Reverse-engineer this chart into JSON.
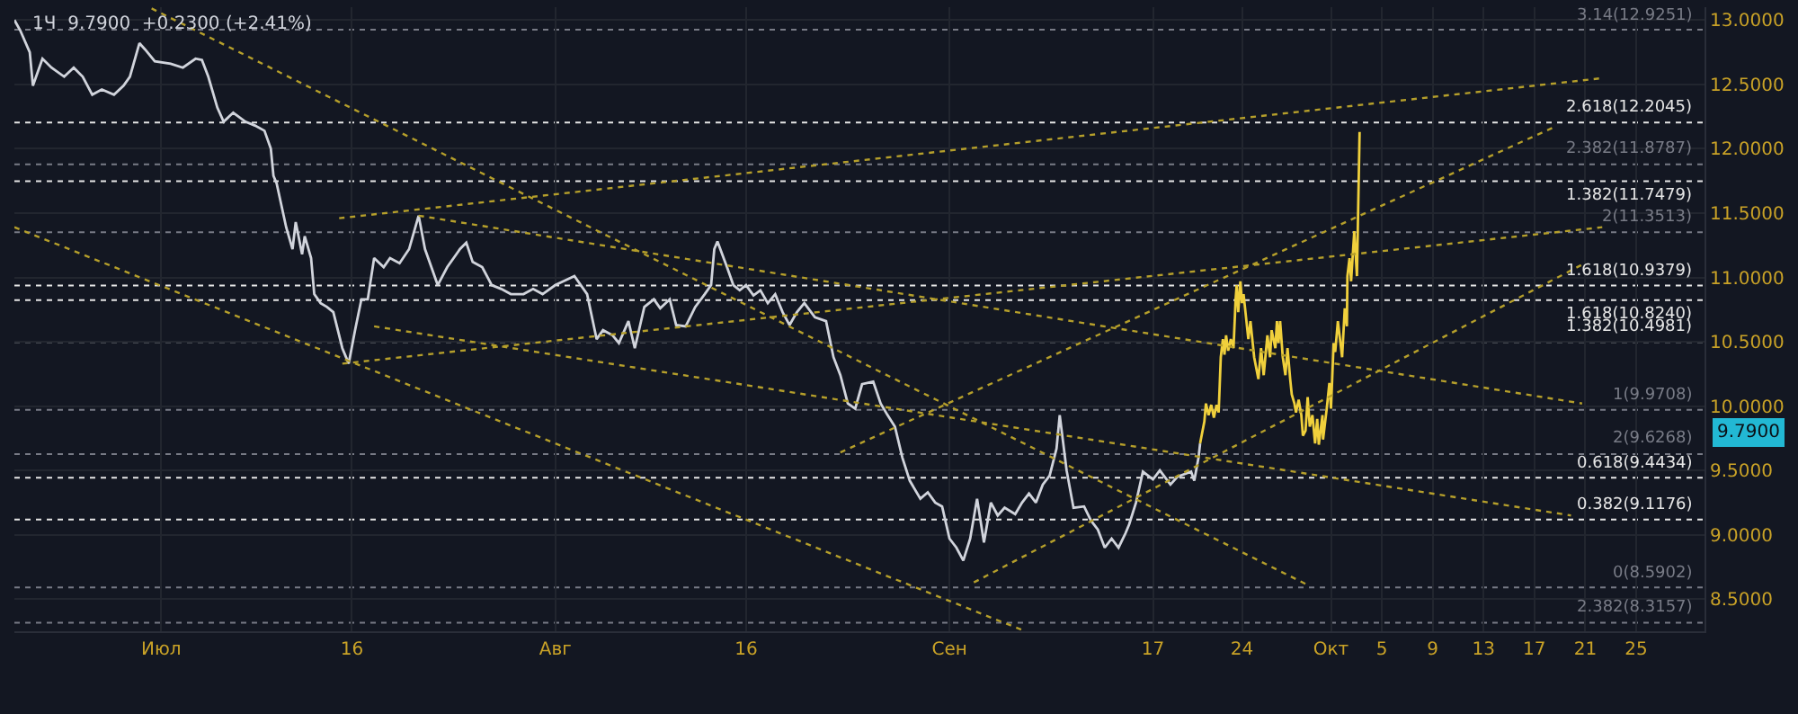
{
  "chart_data": {
    "type": "line",
    "title": "1Ч  9.7900  +0.2300 (+2.41%)",
    "xlim": [
      "--06-19T11:00",
      "--10-30T09:00"
    ],
    "ylim": [
      8.25,
      13.1
    ],
    "xticks": [
      {
        "value": "--07-01",
        "label": "Июл"
      },
      {
        "value": "--07-16",
        "label": "16"
      },
      {
        "value": "--08-01",
        "label": "Авг"
      },
      {
        "value": "--08-16",
        "label": "16"
      },
      {
        "value": "--09-01",
        "label": "Сен"
      },
      {
        "value": "--09-17",
        "label": "17"
      },
      {
        "value": "--09-24",
        "label": "24"
      },
      {
        "value": "--10-01",
        "label": "Окт"
      },
      {
        "value": "--10-05",
        "label": "5"
      },
      {
        "value": "--10-09",
        "label": "9"
      },
      {
        "value": "--10-13",
        "label": "13"
      },
      {
        "value": "--10-17",
        "label": "17"
      },
      {
        "value": "--10-21",
        "label": "21"
      },
      {
        "value": "--10-25",
        "label": "25"
      }
    ],
    "yticks": [
      {
        "value": 8.5,
        "label": "8.5000"
      },
      {
        "value": 9,
        "label": "9.0000"
      },
      {
        "value": 9.5,
        "label": "9.5000"
      },
      {
        "value": 10,
        "label": "10.0000"
      },
      {
        "value": 10.5,
        "label": "10.5000"
      },
      {
        "value": 11,
        "label": "11.0000"
      },
      {
        "value": 11.5,
        "label": "11.5000"
      },
      {
        "value": 12,
        "label": "12.0000"
      },
      {
        "value": 12.5,
        "label": "12.5000"
      },
      {
        "value": 13,
        "label": "13.0000"
      }
    ],
    "grid": true,
    "marker": "none",
    "series": [
      {
        "color": "#d1d4dc",
        "line_style": "solid",
        "x": [
          "--06-19T11:00",
          "--06-19T22:00",
          "--06-20T16:00",
          "--06-20T22:00",
          "--06-21T16:00",
          "--06-22T09:00",
          "--06-23T09:00",
          "--06-24T03:00",
          "--06-24T20:00",
          "--06-25T14:00",
          "--06-26T08:00",
          "--06-27T07:00",
          "--06-28T01:00",
          "--06-28T13:00",
          "--06-29T07:00",
          "--06-29T18:00",
          "--06-30T12:00",
          "--07-01T18:00",
          "--07-02T17:00",
          "--07-03T17:00",
          "--07-04T05:00",
          "--07-04T17:00",
          "--07-05T10:00",
          "--07-05T22:00",
          "--07-06T16:00",
          "--07-07T15:00",
          "--07-08T09:00",
          "--07-09T03:00",
          "--07-09T15:00",
          "--07-09T20:00",
          "--07-10T02:00",
          "--07-10T20:00",
          "--07-11T08:00",
          "--07-11T14:00",
          "--07-12T02:00",
          "--07-12T07:00",
          "--07-12T19:00",
          "--07-13T01:00",
          "--07-13T13:00",
          "--07-14T01:00",
          "--07-14T13:00",
          "--07-15T06:00",
          "--07-15T18:00",
          "--07-16T06:00",
          "--07-16T18:00",
          "--07-17T06:00",
          "--07-17T18:00",
          "--07-18T12:00",
          "--07-19T00:00",
          "--07-19T18:00",
          "--07-20T12:00",
          "--07-21T06:00",
          "--07-21T18:00",
          "--07-22T06:00",
          "--07-22T18:00",
          "--07-23T12:00",
          "--07-24T12:00",
          "--07-25T00:00",
          "--07-25T12:00",
          "--07-26T06:00",
          "--07-27T00:00",
          "--07-27T18:00",
          "--07-28T12:00",
          "--07-29T12:00",
          "--07-30T06:00",
          "--07-31T00:00",
          "--08-01T00:00",
          "--08-02T12:00",
          "--08-03T12:00",
          "--08-04T06:00",
          "--08-04T18:00",
          "--08-05T12:00",
          "--08-06T00:00",
          "--08-06T18:00",
          "--08-07T06:00",
          "--08-08T00:00",
          "--08-08T18:00",
          "--08-09T06:00",
          "--08-10T00:00",
          "--08-10T12:00",
          "--08-11T06:00",
          "--08-12T00:00",
          "--08-12T18:00",
          "--08-13T06:00",
          "--08-13T12:00",
          "--08-13T18:00",
          "--08-14T12:00",
          "--08-15T00:00",
          "--08-15T12:00",
          "--08-16T00:00",
          "--08-16T14:00",
          "--08-17T03:00",
          "--08-17T17:00",
          "--08-18T07:00",
          "--08-18T21:00",
          "--08-19T10:00",
          "--08-20T00:00",
          "--08-20T14:00",
          "--08-21T10:00",
          "--08-22T07:00",
          "--08-22T21:00",
          "--08-23T10:00",
          "--08-24T00:00",
          "--08-24T14:00",
          "--08-25T03:00",
          "--08-26T00:00",
          "--08-26T14:00",
          "--08-27T03:00",
          "--08-27T17:00",
          "--08-28T07:00",
          "--08-28T21:00",
          "--08-29T17:00",
          "--08-30T07:00",
          "--08-30T21:00",
          "--08-31T10:00",
          "--09-01T00:00",
          "--09-01T13:00",
          "--09-02T02:00",
          "--09-02T15:00",
          "--09-03T04:00",
          "--09-03T17:00",
          "--09-04T06:00",
          "--09-04T19:00",
          "--09-05T08:00",
          "--09-06T04:00",
          "--09-06T17:00",
          "--09-07T06:00",
          "--09-07T19:00",
          "--09-08T08:00",
          "--09-08T21:00",
          "--09-09T10:00",
          "--09-09T16:00",
          "--09-10T05:00",
          "--09-10T18:00",
          "--09-11T14:00",
          "--09-12T03:00",
          "--09-12T16:00",
          "--09-13T05:00",
          "--09-13T18:00",
          "--09-14T07:00",
          "--09-14T20:00",
          "--09-15T03:00",
          "--09-15T16:00",
          "--09-16T05:00",
          "--09-17T00:00",
          "--09-17T13:00",
          "--09-18T09:00",
          "--09-18T22:00",
          "--09-20T00:00",
          "--09-20T06:00",
          "--09-20T14:00",
          "--09-20T17:00"
        ],
        "values": [
          13.0,
          12.92,
          12.75,
          12.49,
          12.7,
          12.63,
          12.56,
          12.63,
          12.56,
          12.42,
          12.46,
          12.42,
          12.49,
          12.56,
          12.82,
          12.77,
          12.68,
          12.66,
          12.63,
          12.7,
          12.69,
          12.56,
          12.32,
          12.21,
          12.28,
          12.21,
          12.18,
          12.14,
          12.0,
          11.79,
          11.73,
          11.39,
          11.22,
          11.43,
          11.18,
          11.32,
          11.15,
          10.87,
          10.8,
          10.77,
          10.73,
          10.45,
          10.33,
          10.59,
          10.83,
          10.83,
          11.15,
          11.08,
          11.15,
          11.11,
          11.22,
          11.48,
          11.22,
          11.08,
          10.94,
          11.08,
          11.22,
          11.27,
          11.12,
          11.08,
          10.94,
          10.91,
          10.87,
          10.87,
          10.91,
          10.87,
          10.94,
          11.01,
          10.87,
          10.52,
          10.59,
          10.55,
          10.49,
          10.66,
          10.45,
          10.77,
          10.83,
          10.76,
          10.83,
          10.63,
          10.62,
          10.77,
          10.87,
          10.94,
          11.22,
          11.28,
          11.08,
          10.94,
          10.9,
          10.94,
          10.86,
          10.9,
          10.8,
          10.87,
          10.73,
          10.63,
          10.73,
          10.8,
          10.69,
          10.66,
          10.38,
          10.24,
          10.02,
          9.98,
          10.17,
          10.19,
          10.02,
          9.93,
          9.84,
          9.6,
          9.42,
          9.28,
          9.33,
          9.25,
          9.22,
          8.97,
          8.9,
          8.8,
          8.97,
          9.28,
          8.94,
          9.25,
          9.15,
          9.21,
          9.16,
          9.25,
          9.32,
          9.25,
          9.39,
          9.46,
          9.67,
          9.93,
          9.5,
          9.21,
          9.22,
          9.11,
          9.04,
          8.9,
          8.97,
          8.9,
          9.01,
          9.08,
          9.25,
          9.49,
          9.43,
          9.5,
          9.39,
          9.45,
          9.49,
          9.42,
          9.6,
          9.71
        ]
      },
      {
        "color": "#f0d03c",
        "line_style": "solid",
        "x": [
          "--09-20T17:00",
          "--09-21T01:00",
          "--09-21T04:00",
          "--09-21T09:00",
          "--09-21T14:00",
          "--09-21T19:00",
          "--09-22T00:00",
          "--09-22T04:00",
          "--09-22T08:00",
          "--09-22T12:00",
          "--09-22T15:00",
          "--09-22T18:00",
          "--09-22T22:00",
          "--09-23T03:00",
          "--09-23T08:00",
          "--09-23T12:00",
          "--09-23T14:00",
          "--09-23T17:00",
          "--09-23T21:00",
          "--09-24T00:00",
          "--09-24T03:00",
          "--09-24T12:00",
          "--09-24T16:00",
          "--09-24T23:00",
          "--09-25T07:00",
          "--09-25T12:00",
          "--09-25T17:00",
          "--09-26T00:00",
          "--09-26T05:00",
          "--09-26T08:00",
          "--09-26T15:00",
          "--09-26T18:00",
          "--09-26T21:00",
          "--09-27T00:00",
          "--09-27T05:00",
          "--09-27T10:00",
          "--09-27T14:00",
          "--09-27T19:00",
          "--09-27T22:00",
          "--09-28T03:00",
          "--09-28T06:00",
          "--09-28T11:00",
          "--09-28T16:00",
          "--09-28T19:00",
          "--09-29T00:00",
          "--09-29T04:00",
          "--09-29T08:00",
          "--09-29T13:00",
          "--09-29T18:00",
          "--09-29T22:00",
          "--09-30T01:00",
          "--09-30T08:00",
          "--09-30T09:00",
          "--09-30T16:00",
          "--09-30T21:00",
          "--10-01T00:00",
          "--10-01T05:00",
          "--10-01T08:00",
          "--10-01T13:00",
          "--10-01T21:00",
          "--10-02T02:00",
          "--10-02T06:00",
          "--10-02T07:00",
          "--10-02T11:00",
          "--10-02T14:00",
          "--10-02T20:00",
          "--10-03T01:00",
          "--10-03T06:00"
        ],
        "values": [
          9.71,
          9.88,
          10.02,
          9.93,
          10.01,
          9.91,
          10.01,
          9.95,
          10.38,
          10.52,
          10.4,
          10.55,
          10.43,
          10.52,
          10.45,
          10.83,
          10.94,
          10.73,
          10.97,
          10.8,
          10.87,
          10.52,
          10.66,
          10.38,
          10.21,
          10.45,
          10.24,
          10.55,
          10.38,
          10.59,
          10.45,
          10.66,
          10.49,
          10.66,
          10.38,
          10.24,
          10.45,
          10.21,
          10.09,
          10.02,
          9.95,
          10.05,
          9.93,
          9.77,
          9.81,
          10.07,
          9.84,
          9.93,
          9.71,
          9.9,
          9.7,
          9.93,
          9.74,
          9.98,
          10.18,
          9.98,
          10.49,
          10.42,
          10.66,
          10.38,
          10.76,
          10.62,
          11.01,
          11.15,
          10.97,
          11.36,
          11.01,
          12.13
        ]
      },
      {
        "color": "#b59f2b",
        "line_style": "dotted",
        "x": [
          "--06-30T06:00",
          "--09-29T04:00"
        ],
        "values": [
          13.09,
          8.61
        ]
      },
      {
        "color": "#b59f2b",
        "line_style": "dotted",
        "x": [
          "--06-19T11:00",
          "--09-06T17:00"
        ],
        "values": [
          11.39,
          8.26
        ]
      },
      {
        "color": "#b59f2b",
        "line_style": "dotted",
        "x": [
          "--07-15T00:00",
          "--10-22T11:00"
        ],
        "values": [
          11.46,
          12.55
        ]
      },
      {
        "color": "#b59f2b",
        "line_style": "dotted",
        "x": [
          "--08-23T10:00",
          "--10-18T14:00"
        ],
        "values": [
          9.64,
          12.17
        ]
      },
      {
        "color": "#b59f2b",
        "line_style": "dotted",
        "x": [
          "--07-15T06:00",
          "--10-22T08:00"
        ],
        "values": [
          10.33,
          11.39
        ]
      },
      {
        "color": "#b59f2b",
        "line_style": "dotted",
        "x": [
          "--09-02T22:00",
          "--10-20T23:00"
        ],
        "values": [
          8.63,
          11.11
        ]
      },
      {
        "color": "#b59f2b",
        "line_style": "dotted",
        "x": [
          "--07-21T06:00",
          "--10-20T18:00"
        ],
        "values": [
          11.48,
          10.02
        ]
      },
      {
        "color": "#b59f2b",
        "line_style": "dotted",
        "x": [
          "--07-17T18:00",
          "--10-19T21:00"
        ],
        "values": [
          10.62,
          9.15
        ]
      }
    ],
    "ref_lines": [
      {
        "axis": "y",
        "value": 12.9251,
        "label": "3.14(12.9251)",
        "color": "#787b86",
        "line_style": "dotted"
      },
      {
        "axis": "y",
        "value": 12.2045,
        "label": "2.618(12.2045)",
        "color": "#e6e6e6",
        "line_style": "dotted"
      },
      {
        "axis": "y",
        "value": 11.8787,
        "label": "2.382(11.8787)",
        "color": "#787b86",
        "line_style": "dotted"
      },
      {
        "axis": "y",
        "value": 11.7479,
        "label": "1.382(11.7479)",
        "color": "#e6e6e6",
        "line_style": "dotted"
      },
      {
        "axis": "y",
        "value": 11.3513,
        "label": "2(11.3513)",
        "color": "#787b86",
        "line_style": "dotted"
      },
      {
        "axis": "y",
        "value": 10.9379,
        "label": "1.618(10.9379)",
        "color": "#e6e6e6",
        "line_style": "dotted"
      },
      {
        "axis": "y",
        "value": 10.824,
        "label": "1.618(10.8240)",
        "color": "#e6e6e6",
        "line_style": "dotted"
      },
      {
        "axis": "y",
        "value": 10.4981,
        "label": "1.382(10.4981)",
        "color": "#e6e6e6",
        "line_style": "dotted"
      },
      {
        "axis": "y",
        "value": 9.9708,
        "label": "1(9.9708)",
        "color": "#787b86",
        "line_style": "dotted"
      },
      {
        "axis": "y",
        "value": 9.6268,
        "label": "2(9.6268)",
        "color": "#787b86",
        "line_style": "dotted"
      },
      {
        "axis": "y",
        "value": 9.4434,
        "label": "0.618(9.4434)",
        "color": "#e6e6e6",
        "line_style": "dotted"
      },
      {
        "axis": "y",
        "value": 9.1176,
        "label": "0.382(9.1176)",
        "color": "#e6e6e6",
        "line_style": "dotted"
      },
      {
        "axis": "y",
        "value": 8.5902,
        "label": "0(8.5902)",
        "color": "#787b86",
        "line_style": "dotted"
      },
      {
        "axis": "y",
        "value": 8.3157,
        "label": "2.382(8.3157)",
        "color": "#787b86",
        "line_style": "dotted"
      }
    ],
    "annotations": [
      "9.7900"
    ]
  }
}
